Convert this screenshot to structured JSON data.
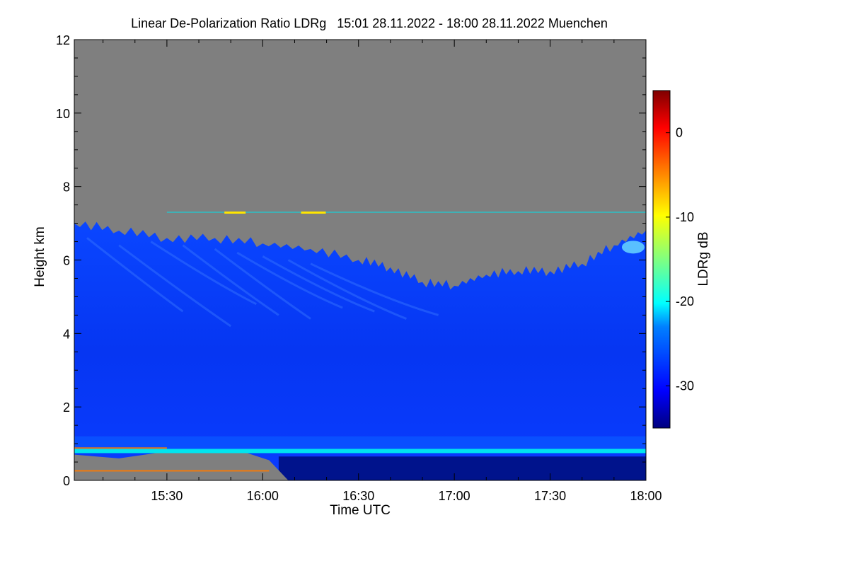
{
  "chart_data": {
    "type": "heatmap",
    "title": "Linear De-Polarization Ratio LDRg   15:01 28.11.2022 - 18:00 28.11.2022 Muenchen",
    "xlabel": "Time UTC",
    "ylabel": "Height km",
    "colorbar_label": "LDRg dB",
    "x_range_minutes": [
      901,
      1080
    ],
    "x_ticks": [
      {
        "label": "15:30",
        "minutes": 930
      },
      {
        "label": "16:00",
        "minutes": 960
      },
      {
        "label": "16:30",
        "minutes": 990
      },
      {
        "label": "17:00",
        "minutes": 1020
      },
      {
        "label": "17:30",
        "minutes": 1050
      },
      {
        "label": "18:00",
        "minutes": 1080
      }
    ],
    "ylim": [
      0,
      12
    ],
    "y_ticks": [
      "0",
      "2",
      "4",
      "6",
      "8",
      "10",
      "12"
    ],
    "colorbar_range": [
      -35,
      5
    ],
    "colorbar_ticks": [
      "0",
      "-10",
      "-20",
      "-30"
    ],
    "no_signal_color": "#7f7f7f",
    "cloud_top_km": [
      [
        901,
        7.0
      ],
      [
        915,
        6.8
      ],
      [
        930,
        6.6
      ],
      [
        945,
        6.6
      ],
      [
        960,
        6.45
      ],
      [
        975,
        6.3
      ],
      [
        990,
        6.0
      ],
      [
        1000,
        5.8
      ],
      [
        1010,
        5.4
      ],
      [
        1020,
        5.3
      ],
      [
        1030,
        5.6
      ],
      [
        1040,
        5.7
      ],
      [
        1050,
        5.7
      ],
      [
        1060,
        5.9
      ],
      [
        1070,
        6.4
      ],
      [
        1080,
        6.8
      ]
    ],
    "melting_layer_km": 0.8,
    "background_ldr_db": -29,
    "colors": {
      "deep_blue": "#0027e6",
      "mid_blue": "#0a3cff",
      "dark_band": "#00138c",
      "cyan": "#00e5ef",
      "yellow": "#ffe600",
      "orange": "#ff7a00"
    }
  }
}
